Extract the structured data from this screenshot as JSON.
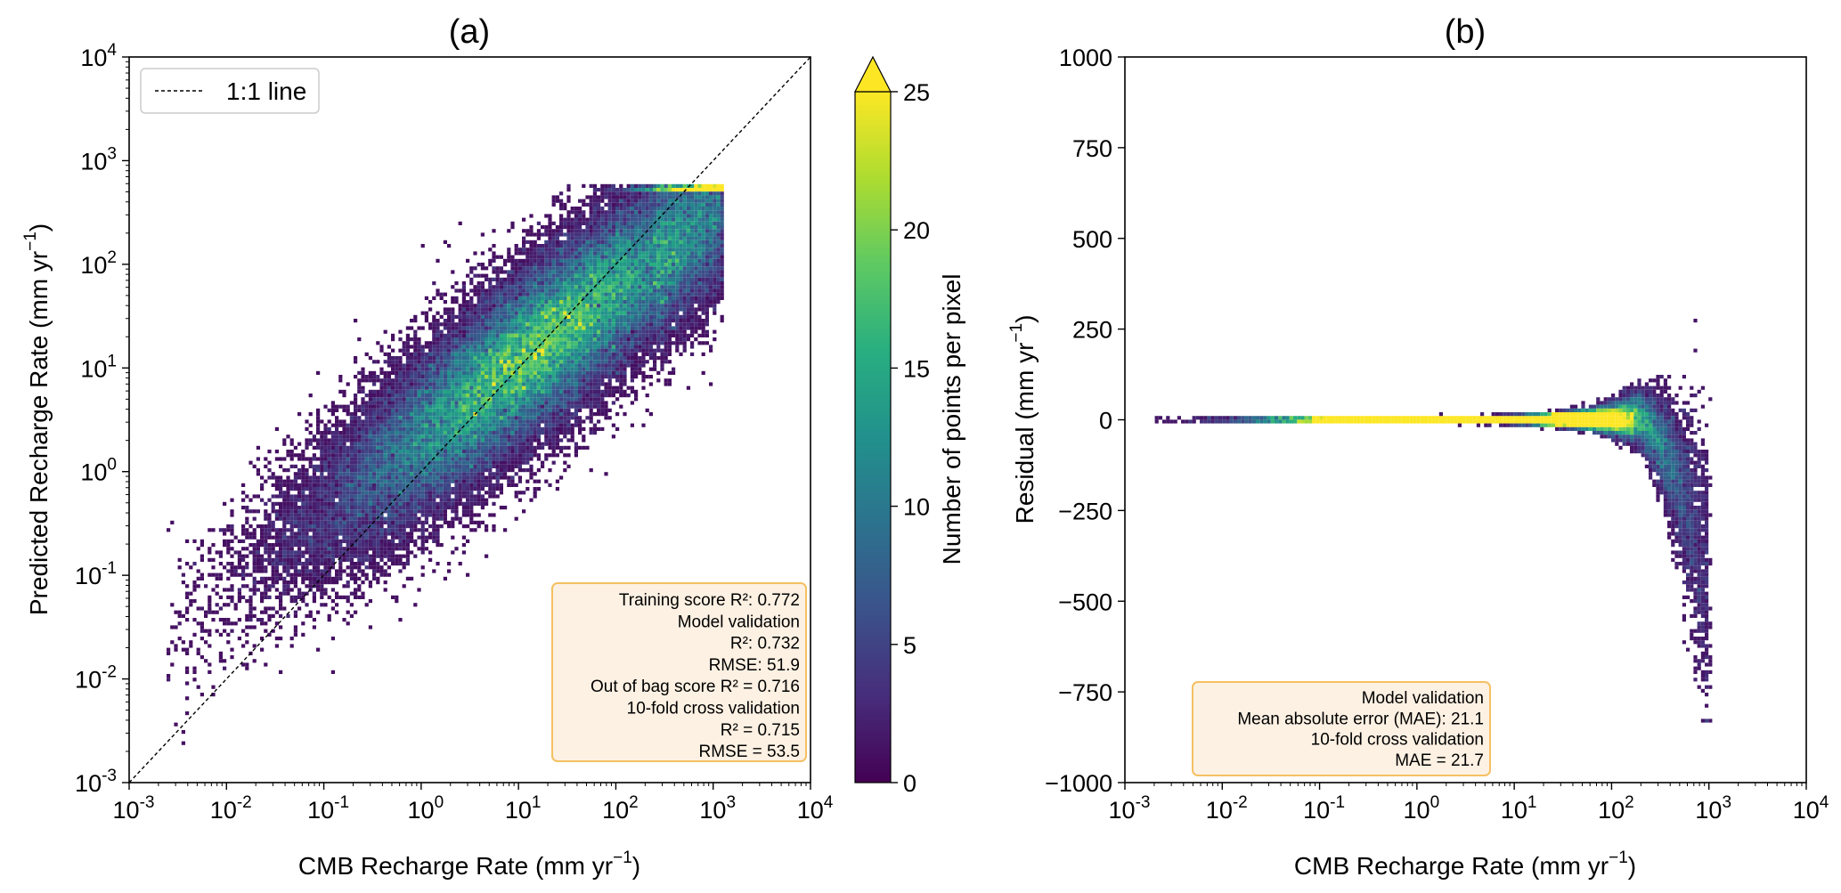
{
  "chart_data": [
    {
      "type": "heatmap",
      "panel_title": "(a)",
      "xlabel": "CMB Recharge Rate (mm yr⁻¹)",
      "ylabel": "Predicted Recharge Rate (mm yr⁻¹)",
      "xscale": "log",
      "yscale": "log",
      "xlim": [
        0.001,
        10000
      ],
      "ylim": [
        0.001,
        10000
      ],
      "x_tick_labels": [
        {
          "base": "10",
          "exp": "-3"
        },
        {
          "base": "10",
          "exp": "-2"
        },
        {
          "base": "10",
          "exp": "-1"
        },
        {
          "base": "10",
          "exp": "0"
        },
        {
          "base": "10",
          "exp": "1"
        },
        {
          "base": "10",
          "exp": "2"
        },
        {
          "base": "10",
          "exp": "3"
        },
        {
          "base": "10",
          "exp": "4"
        }
      ],
      "y_tick_labels": [
        {
          "base": "10",
          "exp": "-3"
        },
        {
          "base": "10",
          "exp": "-2"
        },
        {
          "base": "10",
          "exp": "-1"
        },
        {
          "base": "10",
          "exp": "0"
        },
        {
          "base": "10",
          "exp": "1"
        },
        {
          "base": "10",
          "exp": "2"
        },
        {
          "base": "10",
          "exp": "3"
        },
        {
          "base": "10",
          "exp": "4"
        }
      ],
      "reference_line": {
        "label": "1:1 line",
        "from": [
          0.001,
          0.001
        ],
        "to": [
          10000,
          10000
        ]
      },
      "legend_position": "top-left",
      "density_description": "2D histogram of points along the 1:1 line; densest near x=10-100, y=10-30; scattered points from x=0.003 to 1000",
      "annotation_position": "bottom-right",
      "annotation_lines": [
        "Training score R²: 0.772",
        "Model validation",
        "R²: 0.732",
        "RMSE: 51.9",
        "Out of bag score R² = 0.716",
        "10-fold cross validation",
        "R² = 0.715",
        "RMSE = 53.5"
      ]
    },
    {
      "type": "heatmap",
      "panel_title": "(b)",
      "xlabel": "CMB Recharge Rate (mm yr⁻¹)",
      "ylabel": "Residual (mm yr⁻¹)",
      "xscale": "log",
      "yscale": "linear",
      "xlim": [
        0.001,
        10000
      ],
      "ylim": [
        -1000,
        1000
      ],
      "x_tick_labels": [
        {
          "base": "10",
          "exp": "-3"
        },
        {
          "base": "10",
          "exp": "-2"
        },
        {
          "base": "10",
          "exp": "-1"
        },
        {
          "base": "10",
          "exp": "0"
        },
        {
          "base": "10",
          "exp": "1"
        },
        {
          "base": "10",
          "exp": "2"
        },
        {
          "base": "10",
          "exp": "3"
        },
        {
          "base": "10",
          "exp": "4"
        }
      ],
      "y_ticks": [
        1000,
        750,
        500,
        250,
        0,
        -250,
        -500,
        -750,
        -1000
      ],
      "y_tick_labels": [
        "1000",
        "750",
        "500",
        "250",
        "0",
        "−250",
        "−500",
        "−750",
        "−1000"
      ],
      "density_description": "Residuals near 0 for x<10, dense yellow band x=1-30; spread widens toward x=100-1000 with residuals down to about -800",
      "annotation_position": "bottom-left",
      "annotation_lines": [
        "Model validation",
        "Mean absolute error (MAE): 21.1",
        "10-fold cross validation",
        "MAE = 21.7"
      ]
    }
  ],
  "colorbar": {
    "label": "Number of points per pixel",
    "min": 0,
    "max": 25,
    "ticks": [
      0,
      5,
      10,
      15,
      20,
      25
    ],
    "tick_labels": [
      "0",
      "5",
      "10",
      "15",
      "20",
      "25"
    ],
    "extend": "max",
    "colormap": "viridis"
  },
  "colors": {
    "viridis_stops": [
      "#440154",
      "#472d7b",
      "#3b528b",
      "#2c728e",
      "#21918c",
      "#28ae80",
      "#5ec962",
      "#addc30",
      "#fde725"
    ],
    "annotation_fill": "#fdf1e3",
    "annotation_border": "#f5c062"
  }
}
